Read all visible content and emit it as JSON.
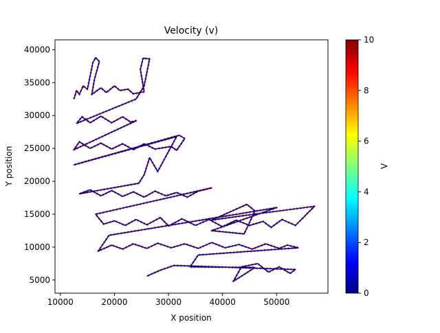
{
  "chart_data": {
    "type": "line",
    "title": "Velocity (v)",
    "xlabel": "X position",
    "ylabel": "Y position",
    "xlim": [
      9000,
      59500
    ],
    "ylim": [
      3000,
      41500
    ],
    "xticks": [
      10000,
      20000,
      30000,
      40000,
      50000
    ],
    "yticks": [
      5000,
      10000,
      15000,
      20000,
      25000,
      30000,
      35000,
      40000
    ],
    "xtick_labels": [
      "10000",
      "20000",
      "30000",
      "40000",
      "50000"
    ],
    "ytick_labels": [
      "5000",
      "10000",
      "15000",
      "20000",
      "25000",
      "30000",
      "35000",
      "40000"
    ],
    "grid": false,
    "colorbar": {
      "label": "V",
      "range": [
        0,
        10
      ],
      "ticks": [
        0,
        2,
        4,
        6,
        8,
        10
      ],
      "tick_labels": [
        "0",
        "2",
        "4",
        "6",
        "8",
        "10"
      ],
      "colormap": "jet",
      "colors": [
        "#000080",
        "#0000ff",
        "#0080ff",
        "#00ffff",
        "#80ff80",
        "#ffff00",
        "#ff8000",
        "#ff0000",
        "#800000"
      ]
    },
    "series": [
      {
        "values": [
          [
            12500,
            32500
          ],
          [
            13000,
            33800
          ],
          [
            13500,
            33200
          ],
          [
            14200,
            34500
          ],
          [
            15000,
            34000
          ],
          [
            16000,
            38000
          ],
          [
            16500,
            38800
          ],
          [
            17200,
            38200
          ],
          [
            16300,
            35500
          ],
          [
            15800,
            33200
          ],
          [
            16800,
            33800
          ],
          [
            17500,
            34200
          ],
          [
            18500,
            33500
          ],
          [
            20000,
            34500
          ],
          [
            21000,
            33800
          ],
          [
            22500,
            34000
          ],
          [
            23500,
            33300
          ],
          [
            25500,
            33600
          ],
          [
            24800,
            37000
          ],
          [
            25300,
            38700
          ],
          [
            26500,
            38600
          ],
          [
            25500,
            34500
          ],
          [
            24000,
            32500
          ],
          [
            13000,
            28800
          ],
          [
            14000,
            29800
          ],
          [
            15500,
            28900
          ],
          [
            17500,
            29900
          ],
          [
            19500,
            28900
          ],
          [
            21500,
            29800
          ],
          [
            23000,
            29000
          ],
          [
            24000,
            29200
          ],
          [
            12500,
            24800
          ],
          [
            13500,
            26000
          ],
          [
            15500,
            25000
          ],
          [
            17500,
            25800
          ],
          [
            19500,
            24900
          ],
          [
            21500,
            25700
          ],
          [
            23500,
            24800
          ],
          [
            25500,
            25700
          ],
          [
            27500,
            24900
          ],
          [
            30500,
            25300
          ],
          [
            31500,
            24700
          ],
          [
            33000,
            26500
          ],
          [
            32000,
            27000
          ],
          [
            12500,
            22500
          ],
          [
            31500,
            26800
          ],
          [
            28000,
            21500
          ],
          [
            26500,
            23600
          ],
          [
            25500,
            21000
          ],
          [
            24500,
            19700
          ],
          [
            13500,
            18100
          ],
          [
            15500,
            18700
          ],
          [
            17500,
            17800
          ],
          [
            19500,
            18600
          ],
          [
            21500,
            17700
          ],
          [
            23500,
            18400
          ],
          [
            25500,
            17600
          ],
          [
            27500,
            18500
          ],
          [
            29500,
            17800
          ],
          [
            31500,
            18300
          ],
          [
            33500,
            17600
          ],
          [
            35500,
            18500
          ],
          [
            38000,
            19000
          ],
          [
            16500,
            15000
          ],
          [
            18000,
            13500
          ],
          [
            20000,
            14000
          ],
          [
            22000,
            13300
          ],
          [
            24000,
            14200
          ],
          [
            26000,
            13400
          ],
          [
            28500,
            14500
          ],
          [
            30000,
            13200
          ],
          [
            32500,
            14300
          ],
          [
            35000,
            13300
          ],
          [
            37500,
            14200
          ],
          [
            40000,
            13100
          ],
          [
            42500,
            14100
          ],
          [
            45000,
            13300
          ],
          [
            47500,
            13900
          ],
          [
            49000,
            13000
          ],
          [
            51000,
            14200
          ],
          [
            53500,
            13300
          ],
          [
            57000,
            16200
          ],
          [
            44000,
            14800
          ],
          [
            38000,
            14100
          ],
          [
            44500,
            16500
          ],
          [
            46000,
            15500
          ],
          [
            44000,
            12000
          ],
          [
            38000,
            12500
          ],
          [
            50000,
            16000
          ],
          [
            19000,
            11800
          ],
          [
            17000,
            9400
          ],
          [
            19500,
            10300
          ],
          [
            21500,
            9700
          ],
          [
            23500,
            10500
          ],
          [
            26000,
            9800
          ],
          [
            28000,
            10600
          ],
          [
            30500,
            9900
          ],
          [
            33000,
            10500
          ],
          [
            35500,
            9800
          ],
          [
            38000,
            10700
          ],
          [
            40500,
            9900
          ],
          [
            43000,
            10400
          ],
          [
            45500,
            9700
          ],
          [
            48000,
            10500
          ],
          [
            50500,
            9800
          ],
          [
            52000,
            10300
          ],
          [
            54000,
            9900
          ],
          [
            35500,
            8800
          ],
          [
            34000,
            7000
          ],
          [
            46000,
            6900
          ],
          [
            42000,
            4800
          ],
          [
            43500,
            7000
          ],
          [
            46500,
            7500
          ],
          [
            48500,
            6200
          ],
          [
            50500,
            7000
          ],
          [
            52500,
            6000
          ],
          [
            53500,
            6600
          ],
          [
            31000,
            7200
          ],
          [
            28500,
            6500
          ],
          [
            26000,
            5600
          ]
        ]
      }
    ]
  }
}
